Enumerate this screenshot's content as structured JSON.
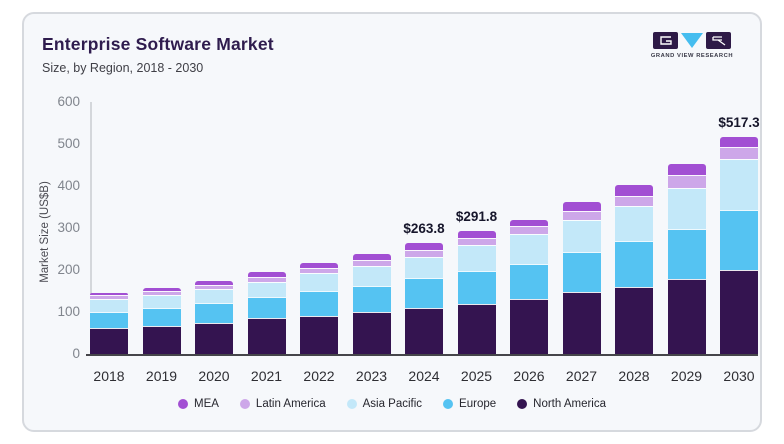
{
  "header": {
    "title": "Enterprise Software Market",
    "subtitle": "Size, by Region, 2018 - 2030"
  },
  "logo": {
    "caption": "GRAND VIEW RESEARCH"
  },
  "chart_data": {
    "type": "bar",
    "stacked": true,
    "title": "Enterprise Software Market",
    "subtitle": "Size, by Region, 2018 - 2030",
    "ylabel": "Market Size (US$B)",
    "xlabel": "",
    "ylim": [
      0,
      600
    ],
    "yticks": [
      0,
      100,
      200,
      300,
      400,
      500,
      600
    ],
    "grid": false,
    "categories": [
      "2018",
      "2019",
      "2020",
      "2021",
      "2022",
      "2023",
      "2024",
      "2025",
      "2026",
      "2027",
      "2028",
      "2029",
      "2030"
    ],
    "series": [
      {
        "name": "North America",
        "color": "#341450",
        "values": [
          62,
          67,
          75,
          85,
          90,
          100,
          110,
          118,
          132,
          147,
          160,
          178,
          201
        ]
      },
      {
        "name": "Europe",
        "color": "#55c3f2",
        "values": [
          38,
          42,
          46,
          50,
          61,
          62,
          70,
          80,
          83,
          95,
          108,
          120,
          141
        ]
      },
      {
        "name": "Asia Pacific",
        "color": "#c3e8f9",
        "values": [
          32,
          32,
          34,
          36,
          41,
          47,
          52,
          62,
          70,
          77,
          84,
          98,
          123.3
        ]
      },
      {
        "name": "Latin America",
        "color": "#cda7e9",
        "values": [
          8,
          8.5,
          10,
          12,
          13,
          15,
          16,
          16.5,
          19,
          22,
          25,
          30,
          28
        ]
      },
      {
        "name": "MEA",
        "color": "#a24fd3",
        "values": [
          6,
          8.5,
          10,
          12,
          11,
          15,
          15.8,
          15.3,
          16,
          21,
          25,
          27,
          24
        ]
      }
    ],
    "totals_labeled": [
      {
        "category": "2024",
        "label": "$263.8"
      },
      {
        "category": "2025",
        "label": "$291.8"
      },
      {
        "category": "2030",
        "label": "$517.3"
      }
    ],
    "legend": [
      "MEA",
      "Latin America",
      "Asia Pacific",
      "Europe",
      "North America"
    ],
    "legend_position": "bottom"
  }
}
